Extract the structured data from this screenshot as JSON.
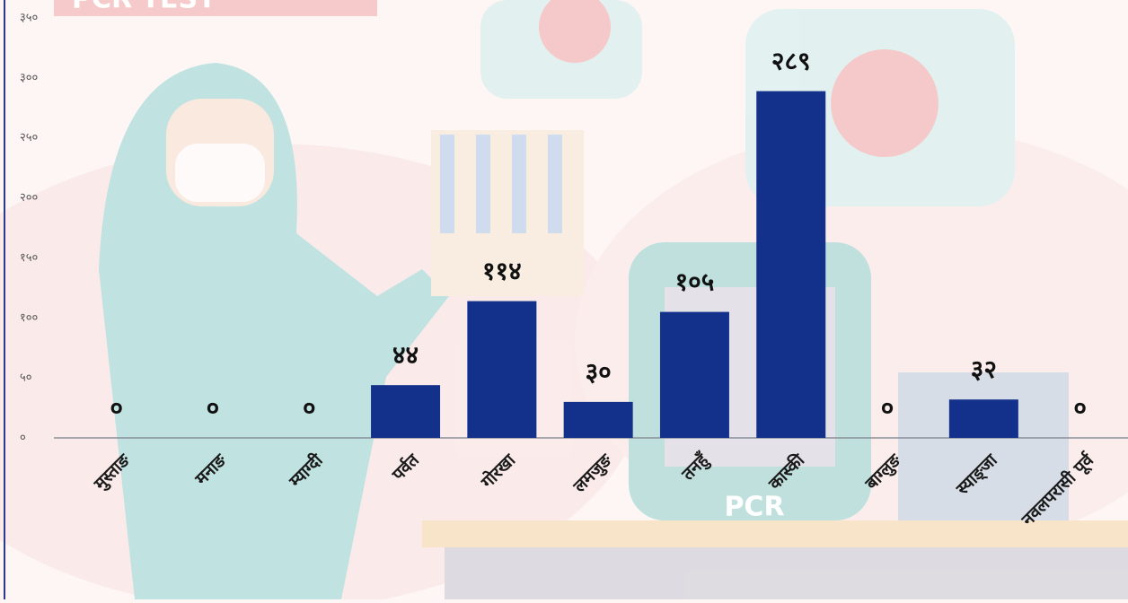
{
  "chart_data": {
    "type": "bar",
    "badge": "PCR TEST",
    "machine_label": "PCR",
    "categories": [
      "मुस्ताङ",
      "मनाङ",
      "म्याग्दी",
      "पर्वत",
      "गोरखा",
      "लमजुङ",
      "तनहुँ",
      "कास्की",
      "बाग्लुङ",
      "स्याङ्जा",
      "नवलपरासी पूर्व"
    ],
    "values": [
      0,
      0,
      0,
      44,
      114,
      30,
      105,
      289,
      0,
      32,
      0
    ],
    "value_labels": [
      "०",
      "०",
      "०",
      "४४",
      "११४",
      "३०",
      "१०५",
      "२८९",
      "०",
      "३२",
      "०"
    ],
    "color": "#13318a",
    "ylim": [
      0,
      350
    ],
    "yticks": [
      {
        "value": 0,
        "label": "०"
      },
      {
        "value": 50,
        "label": "५०"
      },
      {
        "value": 100,
        "label": "१००"
      },
      {
        "value": 150,
        "label": "१५०"
      },
      {
        "value": 200,
        "label": "२००"
      },
      {
        "value": 250,
        "label": "२५०"
      },
      {
        "value": 300,
        "label": "३००"
      },
      {
        "value": 350,
        "label": "३५०"
      }
    ]
  }
}
